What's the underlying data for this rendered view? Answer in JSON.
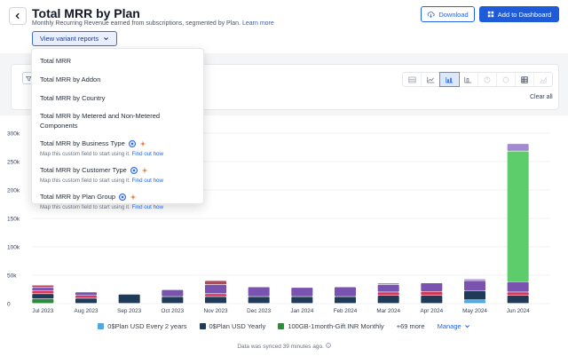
{
  "header": {
    "title": "Total MRR by Plan",
    "subtitle": "Monthly Recurring Revenue earned from subscriptions, segmented by Plan.",
    "learn_more": "Learn more",
    "variant_button": "View variant reports",
    "download": "Download",
    "add_to_dashboard": "Add to Dashboard"
  },
  "toolbar": {
    "clear_all": "Clear all",
    "chart_type_active": "stacked-bar"
  },
  "dropdown": {
    "items": [
      {
        "label": "Total MRR"
      },
      {
        "label": "Total MRR by Addon"
      },
      {
        "label": "Total MRR by Country"
      },
      {
        "label": "Total MRR by Metered and Non-Metered Components"
      },
      {
        "label": "Total MRR by Business Type",
        "sub": "Map this custom field to start using it.",
        "link": "Find out how"
      },
      {
        "label": "Total MRR by Customer Type",
        "sub": "Map this custom field to start using it.",
        "link": "Find out how"
      },
      {
        "label": "Total MRR by Plan Group",
        "sub": "Map this custom field to start using it.",
        "link": "Find out how"
      }
    ]
  },
  "legend": {
    "items": [
      {
        "name": "0$Plan USD Every 2 years",
        "color": "#4fa8e0"
      },
      {
        "name": "0$Plan USD Yearly",
        "color": "#1f3b57"
      },
      {
        "name": "100GB-1month-Gift INR Monthly",
        "color": "#2e8b3e"
      }
    ],
    "more": "+69 more",
    "manage": "Manage"
  },
  "footer": {
    "sync": "Data was synced 39 minutes ago."
  },
  "chart_data": {
    "type": "bar",
    "stacked": true,
    "categories": [
      "Jul 2023",
      "Aug 2023",
      "Sep 2023",
      "Oct 2023",
      "Nov 2023",
      "Dec 2023",
      "Jan 2024",
      "Feb 2024",
      "Mar 2024",
      "Apr 2024",
      "May 2024",
      "Jun 2024"
    ],
    "y_ticks": [
      "0",
      "50k",
      "100k",
      "150k",
      "200k",
      "250k",
      "300k"
    ],
    "ylim": [
      0,
      300000
    ],
    "grid": true,
    "segment_colors": [
      "#2e8b3e",
      "#4fa8e0",
      "#1f3b57",
      "#e0335a",
      "#7a52b0",
      "#b04a5a",
      "#5dcc6a",
      "#a18ad0"
    ],
    "stacks": [
      [
        8000,
        0,
        9000,
        5000,
        6000,
        4000,
        0,
        0
      ],
      [
        0,
        0,
        9000,
        5000,
        6000,
        0,
        0,
        0
      ],
      [
        0,
        0,
        16000,
        0,
        0,
        0,
        0,
        0
      ],
      [
        0,
        0,
        12000,
        0,
        12000,
        0,
        0,
        0
      ],
      [
        0,
        0,
        12000,
        5000,
        16000,
        7000,
        0,
        0
      ],
      [
        0,
        0,
        12000,
        0,
        17000,
        0,
        0,
        0
      ],
      [
        0,
        0,
        12000,
        0,
        16000,
        0,
        0,
        0
      ],
      [
        0,
        0,
        12000,
        0,
        17000,
        0,
        0,
        0
      ],
      [
        0,
        0,
        14000,
        6000,
        13000,
        0,
        0,
        3000
      ],
      [
        0,
        0,
        14000,
        7000,
        15000,
        0,
        0,
        0
      ],
      [
        0,
        6000,
        16000,
        0,
        18000,
        0,
        0,
        3000
      ],
      [
        0,
        0,
        14000,
        6000,
        18000,
        0,
        230000,
        13000
      ]
    ]
  }
}
